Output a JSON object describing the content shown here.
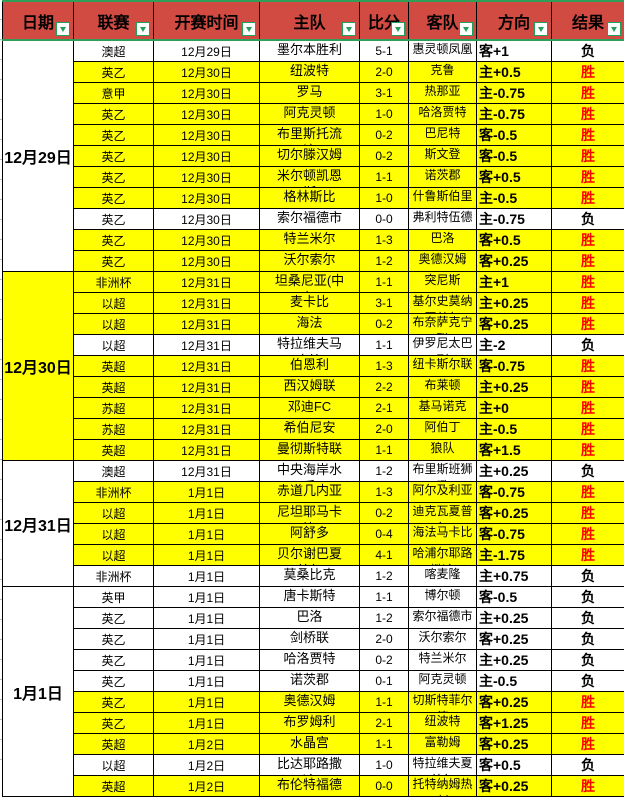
{
  "colors": {
    "header_bg": "#d14b42",
    "highlight_row": "#ffff00",
    "win_text": "#ff0000",
    "accent_green": "#2f9e57"
  },
  "table": {
    "columns": [
      {
        "key": "date",
        "label": "日期"
      },
      {
        "key": "league",
        "label": "联赛"
      },
      {
        "key": "time",
        "label": "开赛时间"
      },
      {
        "key": "home",
        "label": "主队"
      },
      {
        "key": "score",
        "label": "比分"
      },
      {
        "key": "away",
        "label": "客队"
      },
      {
        "key": "direction",
        "label": "方向"
      },
      {
        "key": "result",
        "label": "结果"
      }
    ],
    "groups": [
      {
        "date": "12月29日",
        "rows": [
          {
            "league": "澳超",
            "time": "12月29日",
            "home": "墨尔本胜利",
            "score": "5-1",
            "away": "惠灵顿凤凰",
            "direction": "客+1",
            "result": "负",
            "highlight": false
          },
          {
            "league": "英乙",
            "time": "12月30日",
            "home": "纽波特",
            "score": "2-0",
            "away": "克鲁",
            "direction": "主+0.5",
            "result": "胜",
            "highlight": true
          },
          {
            "league": "意甲",
            "time": "12月30日",
            "home": "罗马",
            "score": "3-1",
            "away": "热那亚",
            "direction": "主-0.75",
            "result": "胜",
            "highlight": true
          },
          {
            "league": "英乙",
            "time": "12月30日",
            "home": "阿克灵顿",
            "score": "1-0",
            "away": "哈洛贾特",
            "direction": "主-0.75",
            "result": "胜",
            "highlight": true
          },
          {
            "league": "英乙",
            "time": "12月30日",
            "home": "布里斯托流浪",
            "score": "0-2",
            "away": "巴尼特",
            "direction": "客-0.5",
            "result": "胜",
            "highlight": true
          },
          {
            "league": "英乙",
            "time": "12月30日",
            "home": "切尔滕汉姆",
            "score": "0-2",
            "away": "斯文登",
            "direction": "客-0.5",
            "result": "胜",
            "highlight": true
          },
          {
            "league": "英乙",
            "time": "12月30日",
            "home": "米尔顿凯恩斯",
            "score": "1-1",
            "away": "诺茨郡",
            "direction": "客+0.5",
            "result": "胜",
            "highlight": true
          },
          {
            "league": "英乙",
            "time": "12月30日",
            "home": "格林斯比",
            "score": "1-0",
            "away": "什鲁斯伯里",
            "direction": "主-0.5",
            "result": "胜",
            "highlight": true
          },
          {
            "league": "英乙",
            "time": "12月30日",
            "home": "索尔福德市",
            "score": "0-0",
            "away": "弗利特伍德",
            "direction": "主-0.75",
            "result": "负",
            "highlight": false
          },
          {
            "league": "英乙",
            "time": "12月30日",
            "home": "特兰米尔",
            "score": "1-3",
            "away": "巴洛",
            "direction": "客+0.5",
            "result": "胜",
            "highlight": true
          },
          {
            "league": "英乙",
            "time": "12月30日",
            "home": "沃尔索尔",
            "score": "1-2",
            "away": "奥德汉姆",
            "direction": "客+0.25",
            "result": "胜",
            "highlight": true
          }
        ]
      },
      {
        "date": "12月30日",
        "rows": [
          {
            "league": "非洲杯",
            "time": "12月31日",
            "home": "坦桑尼亚(中立)",
            "score": "1-1",
            "away": "突尼斯",
            "direction": "主+1",
            "result": "胜",
            "highlight": true
          },
          {
            "league": "以超",
            "time": "12月31日",
            "home": "麦卡比",
            "score": "3-1",
            "away": "基尔史莫纳夏普尔",
            "direction": "主+0.25",
            "result": "胜",
            "highlight": true
          },
          {
            "league": "以超",
            "time": "12月31日",
            "home": "海法",
            "score": "0-2",
            "away": "布奈萨克宁联",
            "direction": "客+0.25",
            "result": "胜",
            "highlight": true
          },
          {
            "league": "以超",
            "time": "12月31日",
            "home": "特拉维夫马卡比",
            "score": "1-1",
            "away": "伊罗尼太巴列",
            "direction": "主-2",
            "result": "负",
            "highlight": false
          },
          {
            "league": "英超",
            "time": "12月31日",
            "home": "伯恩利",
            "score": "1-3",
            "away": "纽卡斯尔联",
            "direction": "客-0.75",
            "result": "胜",
            "highlight": true
          },
          {
            "league": "英超",
            "time": "12月31日",
            "home": "西汉姆联",
            "score": "2-2",
            "away": "布莱顿",
            "direction": "主+0.25",
            "result": "胜",
            "highlight": true
          },
          {
            "league": "苏超",
            "time": "12月31日",
            "home": "邓迪FC",
            "score": "2-1",
            "away": "基马诺克",
            "direction": "主+0",
            "result": "胜",
            "highlight": true
          },
          {
            "league": "苏超",
            "time": "12月31日",
            "home": "希伯尼安",
            "score": "2-0",
            "away": "阿伯丁",
            "direction": "主-0.5",
            "result": "胜",
            "highlight": true
          },
          {
            "league": "英超",
            "time": "12月31日",
            "home": "曼彻斯特联",
            "score": "1-1",
            "away": "狼队",
            "direction": "客+1.5",
            "result": "胜",
            "highlight": true
          }
        ]
      },
      {
        "date": "12月31日",
        "rows": [
          {
            "league": "澳超",
            "time": "12月31日",
            "home": "中央海岸水手",
            "score": "1-2",
            "away": "布里斯班狮吼",
            "direction": "主+0.25",
            "result": "负",
            "highlight": false
          },
          {
            "league": "非洲杯",
            "time": "1月1日",
            "home": "赤道几内亚",
            "score": "1-3",
            "away": "阿尔及利亚",
            "direction": "客-0.75",
            "result": "胜",
            "highlight": true
          },
          {
            "league": "以超",
            "time": "1月1日",
            "home": "尼坦耶马卡比",
            "score": "0-2",
            "away": "迪克瓦夏普尔",
            "direction": "客+0.25",
            "result": "胜",
            "highlight": true
          },
          {
            "league": "以超",
            "time": "1月1日",
            "home": "阿舒多",
            "score": "0-4",
            "away": "海法马卡比",
            "direction": "客-0.75",
            "result": "胜",
            "highlight": true
          },
          {
            "league": "以超",
            "time": "1月1日",
            "home": "贝尔谢巴夏普尔",
            "score": "4-1",
            "away": "哈浦尔耶路撒冷",
            "direction": "主-1.75",
            "result": "胜",
            "highlight": true
          },
          {
            "league": "非洲杯",
            "time": "1月1日",
            "home": "莫桑比克",
            "score": "1-2",
            "away": "喀麦隆",
            "direction": "主+0.75",
            "result": "负",
            "highlight": false
          }
        ]
      },
      {
        "date": "1月1日",
        "rows": [
          {
            "league": "英甲",
            "time": "1月1日",
            "home": "唐卡斯特",
            "score": "1-1",
            "away": "博尔顿",
            "direction": "客-0.5",
            "result": "负",
            "highlight": false
          },
          {
            "league": "英乙",
            "time": "1月1日",
            "home": "巴洛",
            "score": "1-2",
            "away": "索尔福德市",
            "direction": "主+0.25",
            "result": "负",
            "highlight": false
          },
          {
            "league": "英乙",
            "time": "1月1日",
            "home": "剑桥联",
            "score": "2-0",
            "away": "沃尔索尔",
            "direction": "客+0.25",
            "result": "负",
            "highlight": false
          },
          {
            "league": "英乙",
            "time": "1月1日",
            "home": "哈洛贾特",
            "score": "0-2",
            "away": "特兰米尔",
            "direction": "主+0.25",
            "result": "负",
            "highlight": false
          },
          {
            "league": "英乙",
            "time": "1月1日",
            "home": "诺茨郡",
            "score": "0-1",
            "away": "阿克灵顿",
            "direction": "主-0.5",
            "result": "负",
            "highlight": false
          },
          {
            "league": "英乙",
            "time": "1月1日",
            "home": "奥德汉姆",
            "score": "1-1",
            "away": "切斯特菲尔德",
            "direction": "客+0.25",
            "result": "胜",
            "highlight": true
          },
          {
            "league": "英乙",
            "time": "1月1日",
            "home": "布罗姆利",
            "score": "2-1",
            "away": "纽波特",
            "direction": "客+1.25",
            "result": "胜",
            "highlight": true
          },
          {
            "league": "英超",
            "time": "1月2日",
            "home": "水晶宫",
            "score": "1-1",
            "away": "富勒姆",
            "direction": "客+0.25",
            "result": "胜",
            "highlight": true
          },
          {
            "league": "以超",
            "time": "1月2日",
            "home": "比达耶路撒冷",
            "score": "1-0",
            "away": "特拉维夫夏普尔",
            "direction": "客+0.5",
            "result": "负",
            "highlight": false
          },
          {
            "league": "英超",
            "time": "1月2日",
            "home": "布伦特福德",
            "score": "0-0",
            "away": "托特纳姆热刺",
            "direction": "客+0.25",
            "result": "胜",
            "highlight": true
          }
        ]
      }
    ]
  }
}
